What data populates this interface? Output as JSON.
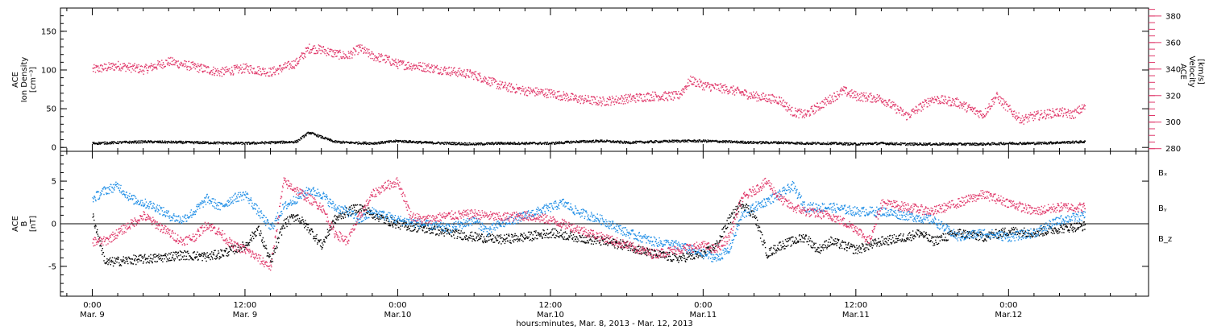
{
  "colors": {
    "black": "#000000",
    "pink": "#e0386a",
    "blue": "#1f8ee6"
  },
  "chart_data": [
    {
      "type": "scatter",
      "panel": "top",
      "ylabel_left": [
        "ACE",
        "Ion Density",
        "[cm⁻³]"
      ],
      "ylabel_right": [
        "ACE",
        "Velocity",
        "[km/s]"
      ],
      "yticks_left": [
        "0",
        "50",
        "100",
        "150"
      ],
      "yticks_right": [
        "280",
        "300",
        "320",
        "340",
        "360",
        "380"
      ],
      "ylim_left": [
        -5,
        180
      ],
      "ylim_right": [
        278,
        386
      ],
      "series": [
        {
          "color": "pink",
          "axis": "right",
          "points": [
            [
              0,
              340
            ],
            [
              2,
              343
            ],
            [
              4,
              340
            ],
            [
              6,
              346
            ],
            [
              8,
              342
            ],
            [
              10,
              338
            ],
            [
              12,
              341
            ],
            [
              14,
              338
            ],
            [
              16,
              345
            ],
            [
              17,
              356
            ],
            [
              18,
              355
            ],
            [
              19,
              352
            ],
            [
              20,
              350
            ],
            [
              21,
              356
            ],
            [
              22,
              350
            ],
            [
              23,
              348
            ],
            [
              24,
              344
            ],
            [
              26,
              342
            ],
            [
              28,
              339
            ],
            [
              30,
              336
            ],
            [
              32,
              328
            ],
            [
              34,
              324
            ],
            [
              36,
              322
            ],
            [
              38,
              318
            ],
            [
              40,
              316
            ],
            [
              42,
              318
            ],
            [
              44,
              320
            ],
            [
              46,
              320
            ],
            [
              47,
              332
            ],
            [
              48,
              328
            ],
            [
              50,
              325
            ],
            [
              52,
              320
            ],
            [
              54,
              317
            ],
            [
              55,
              308
            ],
            [
              56,
              306
            ],
            [
              58,
              318
            ],
            [
              59,
              324
            ],
            [
              60,
              320
            ],
            [
              62,
              318
            ],
            [
              64,
              305
            ],
            [
              66,
              318
            ],
            [
              68,
              315
            ],
            [
              69,
              310
            ],
            [
              70,
              306
            ],
            [
              71,
              320
            ],
            [
              72,
              310
            ],
            [
              73,
              302
            ],
            [
              74,
              305
            ],
            [
              76,
              308
            ],
            [
              77,
              306
            ],
            [
              78,
              312
            ]
          ]
        },
        {
          "color": "black",
          "axis": "left",
          "points": [
            [
              0,
              6
            ],
            [
              4,
              8
            ],
            [
              8,
              7
            ],
            [
              12,
              6
            ],
            [
              14,
              7
            ],
            [
              16,
              8
            ],
            [
              17,
              20
            ],
            [
              18,
              14
            ],
            [
              19,
              8
            ],
            [
              20,
              7
            ],
            [
              22,
              6
            ],
            [
              24,
              9
            ],
            [
              26,
              7
            ],
            [
              28,
              6
            ],
            [
              30,
              5
            ],
            [
              32,
              6
            ],
            [
              34,
              6
            ],
            [
              36,
              6
            ],
            [
              38,
              8
            ],
            [
              40,
              9
            ],
            [
              42,
              7
            ],
            [
              44,
              8
            ],
            [
              46,
              9
            ],
            [
              48,
              9
            ],
            [
              50,
              8
            ],
            [
              52,
              7
            ],
            [
              54,
              7
            ],
            [
              56,
              6
            ],
            [
              58,
              6
            ],
            [
              60,
              5
            ],
            [
              62,
              6
            ],
            [
              64,
              5
            ],
            [
              66,
              5
            ],
            [
              68,
              5
            ],
            [
              70,
              5
            ],
            [
              72,
              6
            ],
            [
              74,
              6
            ],
            [
              76,
              7
            ],
            [
              78,
              8
            ]
          ]
        }
      ]
    },
    {
      "type": "scatter",
      "panel": "bottom",
      "ylabel_left": [
        "ACE",
        "B",
        "[nT]"
      ],
      "yticks_left": [
        "-5",
        "0",
        "5"
      ],
      "ylim_left": [
        -8.5,
        8.5
      ],
      "legend": [
        "Bₓ",
        "Bᵧ",
        "B_z"
      ],
      "legend_placement": "right",
      "series": [
        {
          "name": "Bₓ",
          "color": "black",
          "points": [
            [
              0,
              1
            ],
            [
              1,
              -4.5
            ],
            [
              3,
              -4.2
            ],
            [
              5,
              -4.0
            ],
            [
              7,
              -3.6
            ],
            [
              9,
              -3.8
            ],
            [
              10,
              -3.5
            ],
            [
              12,
              -2.5
            ],
            [
              13,
              -0.5
            ],
            [
              14,
              -4.5
            ],
            [
              15,
              0
            ],
            [
              16,
              1
            ],
            [
              17,
              -0.5
            ],
            [
              18,
              -2.5
            ],
            [
              19,
              0.5
            ],
            [
              20,
              1.5
            ],
            [
              21,
              2.0
            ],
            [
              22,
              1.2
            ],
            [
              23,
              0.5
            ],
            [
              24,
              0
            ],
            [
              26,
              -0.5
            ],
            [
              28,
              -1.0
            ],
            [
              30,
              -1.5
            ],
            [
              32,
              -1.8
            ],
            [
              34,
              -1.5
            ],
            [
              36,
              -1.0
            ],
            [
              38,
              -1.5
            ],
            [
              40,
              -2.0
            ],
            [
              42,
              -2.5
            ],
            [
              44,
              -3.5
            ],
            [
              46,
              -4.0
            ],
            [
              48,
              -3.5
            ],
            [
              49,
              -2.5
            ],
            [
              50,
              0.5
            ],
            [
              51,
              2.5
            ],
            [
              52,
              1.0
            ],
            [
              53,
              -3.5
            ],
            [
              54,
              -2.5
            ],
            [
              56,
              -1.5
            ],
            [
              57,
              -3.0
            ],
            [
              58,
              -2.0
            ],
            [
              60,
              -3.0
            ],
            [
              62,
              -2.0
            ],
            [
              64,
              -1.5
            ],
            [
              65,
              -1.0
            ],
            [
              66,
              -2.0
            ],
            [
              68,
              -1.0
            ],
            [
              70,
              -1.5
            ],
            [
              72,
              -0.8
            ],
            [
              74,
              -1.0
            ],
            [
              76,
              -0.5
            ],
            [
              78,
              -0.2
            ]
          ]
        },
        {
          "name": "Bᵧ",
          "color": "blue",
          "points": [
            [
              0,
              3
            ],
            [
              1,
              4
            ],
            [
              2,
              4.5
            ],
            [
              3,
              3
            ],
            [
              4,
              2.5
            ],
            [
              5,
              2
            ],
            [
              6,
              1
            ],
            [
              7,
              0.5
            ],
            [
              8,
              1.5
            ],
            [
              9,
              3
            ],
            [
              10,
              2
            ],
            [
              11,
              3
            ],
            [
              12,
              3.5
            ],
            [
              13,
              1.5
            ],
            [
              14,
              -0.5
            ],
            [
              15,
              2
            ],
            [
              16,
              3
            ],
            [
              17,
              4
            ],
            [
              18,
              3.5
            ],
            [
              19,
              2
            ],
            [
              20,
              1.5
            ],
            [
              21,
              0.5
            ],
            [
              22,
              1.5
            ],
            [
              23,
              1.0
            ],
            [
              24,
              0.5
            ],
            [
              26,
              0
            ],
            [
              28,
              -0.5
            ],
            [
              30,
              0.5
            ],
            [
              31,
              -0.8
            ],
            [
              32,
              0.0
            ],
            [
              33,
              0.5
            ],
            [
              34,
              1.0
            ],
            [
              36,
              2.0
            ],
            [
              37,
              2.5
            ],
            [
              38,
              1.5
            ],
            [
              40,
              0.5
            ],
            [
              42,
              -1.0
            ],
            [
              44,
              -2.0
            ],
            [
              46,
              -2.5
            ],
            [
              48,
              -3.5
            ],
            [
              49,
              -4.0
            ],
            [
              50,
              -3.0
            ],
            [
              51,
              1.0
            ],
            [
              52,
              2.0
            ],
            [
              54,
              3.5
            ],
            [
              55,
              4.5
            ],
            [
              56,
              2.0
            ],
            [
              58,
              2.0
            ],
            [
              60,
              1.5
            ],
            [
              62,
              1.5
            ],
            [
              64,
              1.0
            ],
            [
              66,
              0.5
            ],
            [
              68,
              -1.5
            ],
            [
              70,
              -1.0
            ],
            [
              72,
              -1.5
            ],
            [
              74,
              -1.0
            ],
            [
              76,
              0.5
            ],
            [
              78,
              1.0
            ]
          ]
        },
        {
          "name": "B_z",
          "color": "pink",
          "points": [
            [
              0,
              -2
            ],
            [
              1,
              -2
            ],
            [
              2,
              -1
            ],
            [
              3,
              0
            ],
            [
              4,
              1
            ],
            [
              5,
              0
            ],
            [
              6,
              -1
            ],
            [
              7,
              -2
            ],
            [
              8,
              -1.5
            ],
            [
              9,
              0
            ],
            [
              10,
              -1
            ],
            [
              11,
              -2.5
            ],
            [
              12,
              -3
            ],
            [
              13,
              -4
            ],
            [
              14,
              -5
            ],
            [
              15,
              5
            ],
            [
              16,
              4
            ],
            [
              17,
              3
            ],
            [
              18,
              2
            ],
            [
              19,
              -1
            ],
            [
              20,
              -2
            ],
            [
              21,
              1
            ],
            [
              22,
              3.5
            ],
            [
              23,
              4.5
            ],
            [
              24,
              5
            ],
            [
              25,
              1
            ],
            [
              26,
              0.5
            ],
            [
              28,
              1.0
            ],
            [
              30,
              1.2
            ],
            [
              32,
              0.8
            ],
            [
              34,
              1.0
            ],
            [
              36,
              0.5
            ],
            [
              38,
              -0.5
            ],
            [
              40,
              -1.5
            ],
            [
              42,
              -2.5
            ],
            [
              44,
              -3.5
            ],
            [
              46,
              -3.0
            ],
            [
              48,
              -2.5
            ],
            [
              49,
              -3.0
            ],
            [
              50,
              -1.5
            ],
            [
              51,
              3.0
            ],
            [
              52,
              4.0
            ],
            [
              53,
              5.0
            ],
            [
              54,
              3.0
            ],
            [
              55,
              2.0
            ],
            [
              56,
              1.5
            ],
            [
              58,
              1.0
            ],
            [
              60,
              -0.5
            ],
            [
              61,
              -2.0
            ],
            [
              62,
              2.5
            ],
            [
              64,
              2.0
            ],
            [
              66,
              1.5
            ],
            [
              68,
              2.5
            ],
            [
              70,
              3.5
            ],
            [
              72,
              2.5
            ],
            [
              74,
              1.5
            ],
            [
              76,
              2.0
            ],
            [
              78,
              2.0
            ]
          ]
        }
      ]
    }
  ],
  "x_axis": {
    "xlim": [
      -2.5,
      83
    ],
    "tick_hours": [
      0,
      12,
      24,
      36,
      48,
      60,
      72
    ],
    "tick_time": [
      "0:00",
      "12:00",
      "0:00",
      "12:00",
      "0:00",
      "12:00",
      "0:00"
    ],
    "tick_date": [
      "Mar. 9",
      "Mar. 9",
      "Mar.10",
      "Mar.10",
      "Mar.11",
      "Mar.11",
      "Mar.12"
    ],
    "xlabel": "hours:minutes, Mar. 8, 2013 - Mar. 12, 2013"
  }
}
